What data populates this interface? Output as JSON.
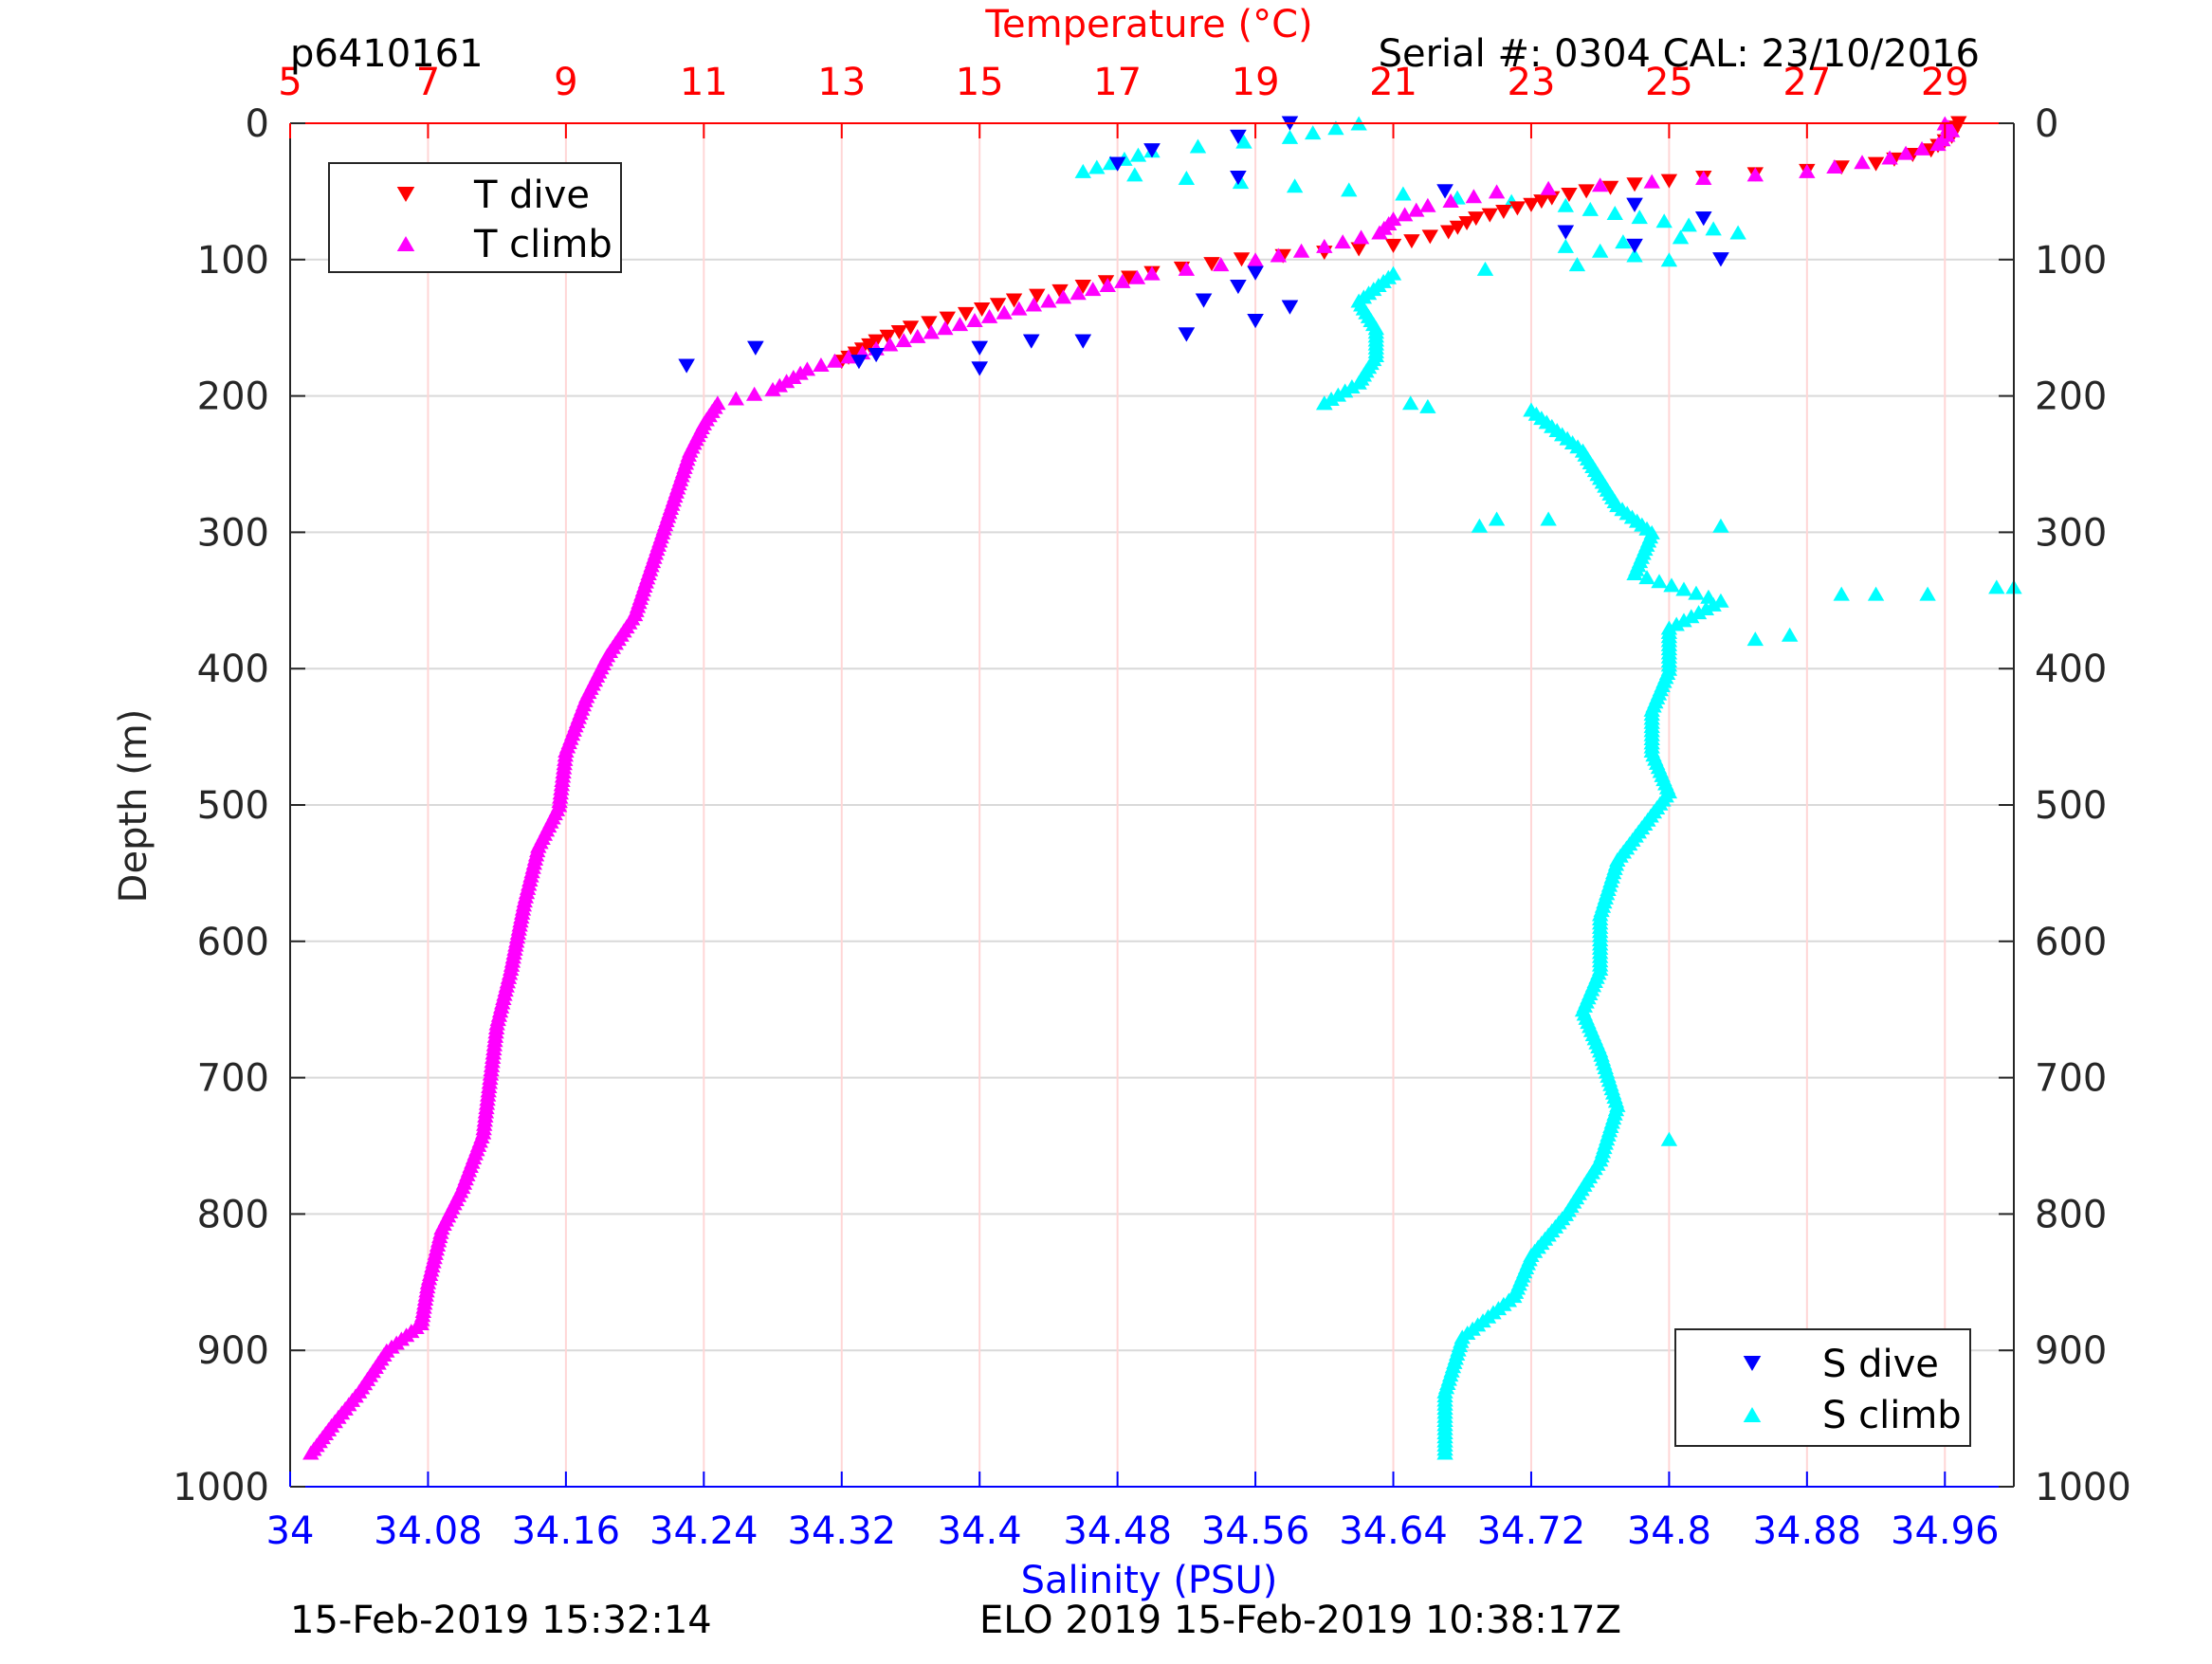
{
  "header": {
    "profile_id": "p6410161",
    "serial_cal": "Serial #: 0304  CAL: 23/10/2016"
  },
  "footer": {
    "left": "15-Feb-2019 15:32:14",
    "right": "ELO 2019 15-Feb-2019 10:38:17Z"
  },
  "chart_data": {
    "type": "scatter",
    "axes": {
      "depth": {
        "label": "Depth (m)",
        "range": [
          0,
          1000
        ],
        "ticks": [
          0,
          100,
          200,
          300,
          400,
          500,
          600,
          700,
          800,
          900,
          1000
        ],
        "reversed": true
      },
      "temperature": {
        "label": "Temperature (°C)",
        "range": [
          5,
          30
        ],
        "ticks": [
          5,
          7,
          9,
          11,
          13,
          15,
          17,
          19,
          21,
          23,
          25,
          27,
          29
        ],
        "position": "top",
        "color": "#ff0000"
      },
      "salinity": {
        "label": "Salinity (PSU)",
        "range": [
          34,
          35
        ],
        "ticks": [
          34,
          34.08,
          34.16,
          34.24,
          34.32,
          34.4,
          34.48,
          34.56,
          34.64,
          34.72,
          34.8,
          34.88,
          34.96
        ],
        "position": "bottom",
        "color": "#0000ff"
      }
    },
    "grid": true,
    "legends": [
      {
        "placement": "top-left",
        "entries": [
          {
            "label": "T dive",
            "marker": "triangle-down",
            "color": "#ff0000"
          },
          {
            "label": "T climb",
            "marker": "triangle-up",
            "color": "#ff00ff"
          }
        ]
      },
      {
        "placement": "bottom-right",
        "entries": [
          {
            "label": "S dive",
            "marker": "triangle-down",
            "color": "#0000ff"
          },
          {
            "label": "S climb",
            "marker": "triangle-up",
            "color": "#00ffff"
          }
        ]
      }
    ],
    "series": [
      {
        "name": "T dive",
        "axis": "temperature",
        "marker": "triangle-down",
        "color": "#ff0000",
        "points": [
          [
            29.2,
            0
          ],
          [
            29.1,
            10
          ],
          [
            28.8,
            20
          ],
          [
            28.0,
            30
          ],
          [
            27.0,
            35
          ],
          [
            25.5,
            40
          ],
          [
            24.5,
            45
          ],
          [
            23.8,
            50
          ],
          [
            23.3,
            55
          ],
          [
            23.0,
            60
          ],
          [
            22.6,
            65
          ],
          [
            22.2,
            70
          ],
          [
            21.8,
            80
          ],
          [
            21.0,
            90
          ],
          [
            20.0,
            95
          ],
          [
            18.8,
            100
          ],
          [
            17.5,
            110
          ],
          [
            16.5,
            120
          ],
          [
            15.5,
            130
          ],
          [
            14.8,
            140
          ],
          [
            14.0,
            150
          ],
          [
            13.5,
            160
          ],
          [
            13.0,
            175
          ]
        ]
      },
      {
        "name": "T climb",
        "axis": "temperature",
        "marker": "triangle-up",
        "color": "#ff00ff",
        "points": [
          [
            29.0,
            0
          ],
          [
            29.1,
            5
          ],
          [
            28.9,
            15
          ],
          [
            28.2,
            25
          ],
          [
            27.0,
            35
          ],
          [
            25.5,
            40
          ],
          [
            24.0,
            45
          ],
          [
            22.5,
            50
          ],
          [
            21.5,
            60
          ],
          [
            21.0,
            70
          ],
          [
            20.8,
            80
          ],
          [
            20.0,
            90
          ],
          [
            19.0,
            100
          ],
          [
            17.5,
            110
          ],
          [
            16.0,
            130
          ],
          [
            14.5,
            150
          ],
          [
            13.5,
            165
          ],
          [
            12.5,
            180
          ],
          [
            12.0,
            195
          ],
          [
            11.2,
            205
          ],
          [
            11.0,
            220
          ],
          [
            10.8,
            240
          ],
          [
            10.6,
            270
          ],
          [
            10.4,
            300
          ],
          [
            10.2,
            330
          ],
          [
            10.0,
            360
          ],
          [
            9.6,
            390
          ],
          [
            9.3,
            420
          ],
          [
            9.0,
            460
          ],
          [
            8.9,
            500
          ],
          [
            8.6,
            530
          ],
          [
            8.4,
            570
          ],
          [
            8.2,
            620
          ],
          [
            8.0,
            660
          ],
          [
            7.9,
            700
          ],
          [
            7.8,
            740
          ],
          [
            7.5,
            780
          ],
          [
            7.2,
            810
          ],
          [
            7.0,
            850
          ],
          [
            6.9,
            880
          ],
          [
            6.4,
            900
          ],
          [
            6.0,
            930
          ],
          [
            5.6,
            955
          ],
          [
            5.3,
            975
          ]
        ]
      },
      {
        "name": "S dive",
        "axis": "salinity",
        "marker": "triangle-down",
        "color": "#0000ff",
        "points": [
          [
            34.58,
            0
          ],
          [
            34.55,
            10
          ],
          [
            34.5,
            20
          ],
          [
            34.48,
            30
          ],
          [
            34.55,
            40
          ],
          [
            34.67,
            50
          ],
          [
            34.78,
            60
          ],
          [
            34.82,
            70
          ],
          [
            34.74,
            80
          ],
          [
            34.78,
            90
          ],
          [
            34.83,
            100
          ],
          [
            34.56,
            110
          ],
          [
            34.55,
            120
          ],
          [
            34.53,
            130
          ],
          [
            34.58,
            135
          ],
          [
            34.56,
            145
          ],
          [
            34.52,
            155
          ],
          [
            34.43,
            160
          ],
          [
            34.4,
            165
          ],
          [
            34.34,
            170
          ],
          [
            34.33,
            175
          ],
          [
            34.4,
            180
          ],
          [
            34.23,
            178
          ],
          [
            34.27,
            165
          ],
          [
            34.46,
            160
          ]
        ]
      },
      {
        "name": "S climb",
        "axis": "salinity",
        "marker": "triangle-up",
        "color": "#00ffff",
        "points": [
          [
            34.62,
            0
          ],
          [
            34.58,
            10
          ],
          [
            34.5,
            20
          ],
          [
            34.46,
            35
          ],
          [
            34.52,
            40
          ],
          [
            34.74,
            60
          ],
          [
            34.84,
            80
          ],
          [
            34.74,
            90
          ],
          [
            34.8,
            100
          ],
          [
            34.64,
            110
          ],
          [
            34.62,
            130
          ],
          [
            34.63,
            150
          ],
          [
            34.63,
            170
          ],
          [
            34.62,
            190
          ],
          [
            34.6,
            205
          ],
          [
            34.72,
            210
          ],
          [
            34.75,
            240
          ],
          [
            34.76,
            260
          ],
          [
            34.77,
            280
          ],
          [
            34.79,
            300
          ],
          [
            34.78,
            330
          ],
          [
            34.83,
            350
          ],
          [
            34.8,
            370
          ],
          [
            34.8,
            400
          ],
          [
            34.79,
            430
          ],
          [
            34.79,
            460
          ],
          [
            34.8,
            490
          ],
          [
            34.77,
            540
          ],
          [
            34.76,
            580
          ],
          [
            34.76,
            620
          ],
          [
            34.75,
            650
          ],
          [
            34.76,
            680
          ],
          [
            34.77,
            720
          ],
          [
            34.76,
            760
          ],
          [
            34.74,
            800
          ],
          [
            34.72,
            830
          ],
          [
            34.71,
            860
          ],
          [
            34.68,
            890
          ],
          [
            34.67,
            930
          ],
          [
            34.67,
            975
          ]
        ]
      }
    ],
    "outliers": [
      {
        "series": "S climb",
        "points": [
          [
            34.9,
            345
          ],
          [
            34.92,
            345
          ],
          [
            34.95,
            345
          ],
          [
            34.99,
            340
          ],
          [
            35.0,
            340
          ],
          [
            34.87,
            375
          ],
          [
            34.85,
            378
          ],
          [
            34.83,
            295
          ],
          [
            34.69,
            295
          ],
          [
            34.7,
            290
          ],
          [
            34.73,
            290
          ],
          [
            34.8,
            745
          ],
          [
            34.65,
            205
          ],
          [
            34.6,
            205
          ]
        ]
      }
    ]
  }
}
